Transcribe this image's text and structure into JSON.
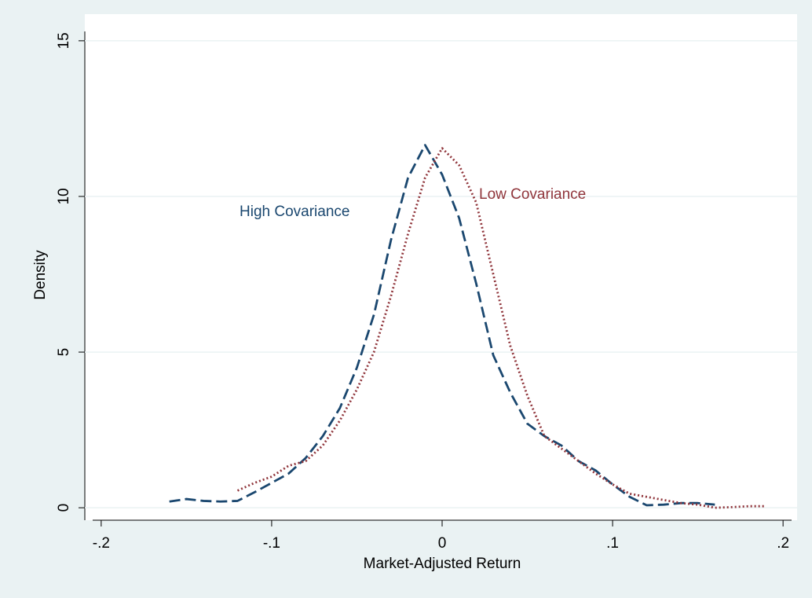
{
  "chart_data": {
    "type": "line",
    "xlabel": "Market-Adjusted Return",
    "ylabel": "Density",
    "xlim": [
      -0.205,
      0.205
    ],
    "ylim": [
      -0.4,
      15.3
    ],
    "xticks": [
      {
        "value": -0.2,
        "label": "-.2"
      },
      {
        "value": -0.1,
        "label": "-.1"
      },
      0,
      {
        "value": 0.1,
        "label": ".1"
      },
      {
        "value": 0.2,
        "label": ".2"
      }
    ],
    "yticks": [
      0,
      5,
      10,
      15
    ],
    "grid": true,
    "series": [
      {
        "name": "High Covariance",
        "color": "#1a476f",
        "style": "dashed",
        "x": [
          -0.16,
          -0.15,
          -0.14,
          -0.13,
          -0.12,
          -0.11,
          -0.1,
          -0.09,
          -0.08,
          -0.07,
          -0.06,
          -0.05,
          -0.04,
          -0.03,
          -0.02,
          -0.01,
          0,
          0.01,
          0.02,
          0.03,
          0.04,
          0.05,
          0.06,
          0.07,
          0.08,
          0.09,
          0.1,
          0.11,
          0.12,
          0.13,
          0.14,
          0.15,
          0.16
        ],
        "values": [
          0.2,
          0.28,
          0.22,
          0.2,
          0.22,
          0.5,
          0.8,
          1.1,
          1.6,
          2.3,
          3.2,
          4.5,
          6.2,
          8.6,
          10.6,
          11.65,
          10.7,
          9.3,
          7.2,
          4.9,
          3.7,
          2.7,
          2.3,
          2.0,
          1.5,
          1.2,
          0.75,
          0.35,
          0.08,
          0.1,
          0.15,
          0.15,
          0.1
        ]
      },
      {
        "name": "Low Covariance",
        "color": "#90353b",
        "style": "dotted",
        "x": [
          -0.12,
          -0.11,
          -0.1,
          -0.09,
          -0.08,
          -0.07,
          -0.06,
          -0.05,
          -0.04,
          -0.03,
          -0.02,
          -0.01,
          0,
          0.01,
          0.02,
          0.03,
          0.04,
          0.05,
          0.06,
          0.07,
          0.08,
          0.09,
          0.1,
          0.11,
          0.12,
          0.13,
          0.14,
          0.15,
          0.16,
          0.17,
          0.18,
          0.19
        ],
        "values": [
          0.55,
          0.8,
          1.0,
          1.35,
          1.5,
          2.0,
          2.8,
          3.8,
          5.0,
          6.8,
          8.8,
          10.6,
          11.55,
          11.0,
          9.8,
          7.5,
          5.2,
          3.6,
          2.3,
          1.9,
          1.5,
          1.1,
          0.75,
          0.45,
          0.35,
          0.25,
          0.15,
          0.1,
          0.0,
          0.02,
          0.05,
          0.05
        ]
      }
    ]
  }
}
